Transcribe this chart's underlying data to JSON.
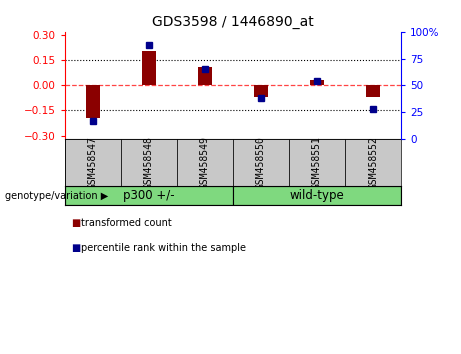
{
  "title": "GDS3598 / 1446890_at",
  "samples": [
    "GSM458547",
    "GSM458548",
    "GSM458549",
    "GSM458550",
    "GSM458551",
    "GSM458552"
  ],
  "transformed_count": [
    -0.195,
    0.205,
    0.11,
    -0.07,
    0.03,
    -0.07
  ],
  "percentile_rank": [
    17,
    88,
    65,
    38,
    54,
    28
  ],
  "ylim_left": [
    -0.32,
    0.32
  ],
  "ylim_right": [
    0,
    100
  ],
  "yticks_left": [
    -0.3,
    -0.15,
    0,
    0.15,
    0.3
  ],
  "yticks_right": [
    0,
    25,
    50,
    75,
    100
  ],
  "ytick_labels_right": [
    "0",
    "25",
    "50",
    "75",
    "100%"
  ],
  "groups": [
    {
      "label": "p300 +/-",
      "indices": [
        0,
        1,
        2
      ],
      "color": "#7FD97F"
    },
    {
      "label": "wild-type",
      "indices": [
        3,
        4,
        5
      ],
      "color": "#7FD97F"
    }
  ],
  "bar_color": "#8B0000",
  "marker_color": "#00008B",
  "zero_line_color": "#FF4444",
  "dotted_line_color": "#000000",
  "bg_color": "#FFFFFF",
  "tick_label_area_color": "#C8C8C8",
  "legend_red_label": "transformed count",
  "legend_blue_label": "percentile rank within the sample",
  "genotype_label": "genotype/variation",
  "bar_width": 0.25,
  "marker_size": 5
}
